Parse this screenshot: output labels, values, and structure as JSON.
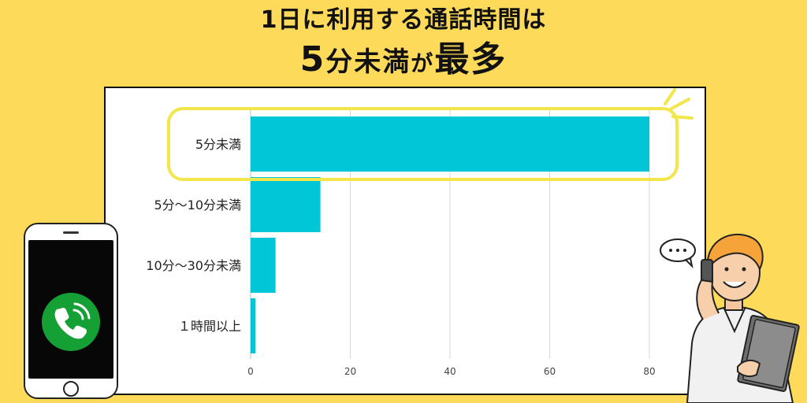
{
  "headline": {
    "line1": "1日に利用する通話時間は",
    "line2_part1": "5",
    "line2_part2": "分未満",
    "line2_part3": "が",
    "line2_part4": "最多"
  },
  "colors": {
    "background": "#FEDA5A",
    "bar": "#00C6D8",
    "highlight": "#F2E64A",
    "phone_call_button": "#15A035"
  },
  "icons": {
    "phone": "smartphone-icon",
    "call": "phone-call-icon",
    "speech": "speech-bubble-icon",
    "person": "businessman-on-phone-illustration"
  },
  "chart_data": {
    "type": "bar",
    "orientation": "horizontal",
    "categories": [
      "5分未満",
      "5分〜10分未満",
      "10分〜30分未満",
      "１時間以上"
    ],
    "values": [
      80,
      14,
      5,
      1
    ],
    "xlim": [
      0,
      80
    ],
    "xticks": [
      "0",
      "20",
      "40",
      "60",
      "80"
    ],
    "grid": true,
    "highlighted_category": "5分未満"
  }
}
